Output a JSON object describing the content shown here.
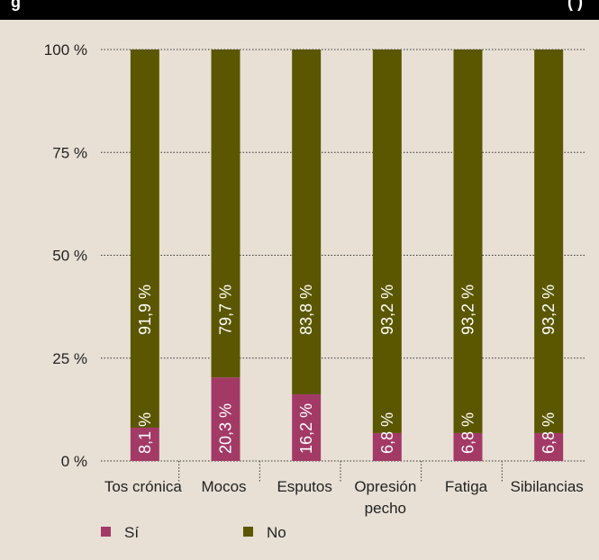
{
  "header": {
    "title_left": "g",
    "title_right": "(  )"
  },
  "chart_data": {
    "type": "bar",
    "stacked": true,
    "percent": true,
    "categories": [
      "Tos crónica",
      "Mocos",
      "Esputos",
      "Opresión\npecho",
      "Fatiga",
      "Sibilancias"
    ],
    "series": [
      {
        "name": "Sí",
        "color": "#a33a66",
        "values": [
          8.1,
          20.3,
          16.2,
          6.8,
          6.8,
          6.8
        ],
        "labels": [
          "8,1 %",
          "20,3 %",
          "16,2 %",
          "6,8 %",
          "6,8 %",
          "6,8 %"
        ]
      },
      {
        "name": "No",
        "color": "#5b5700",
        "values": [
          91.9,
          79.7,
          83.8,
          93.2,
          93.2,
          93.2
        ],
        "labels": [
          "91,9 %",
          "79,7 %",
          "83,8 %",
          "93,2 %",
          "93,2 %",
          "93,2 %"
        ]
      }
    ],
    "yticks": [
      "0 %",
      "25 %",
      "50 %",
      "75 %",
      "100 %"
    ],
    "ylim": [
      0,
      100
    ],
    "grid": "dotted-horizontal",
    "legend": "bottom-left"
  }
}
